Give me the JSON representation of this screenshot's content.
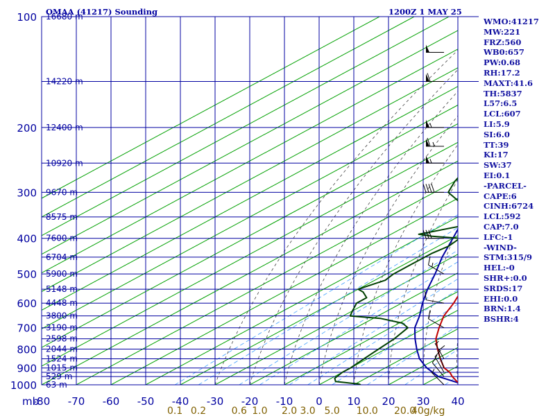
{
  "header": {
    "title": "OMAA (41217) Sounding",
    "time": "1200Z  1 MAY 25"
  },
  "chart_data": {
    "type": "skew-t",
    "pressure_axis_label": "mb",
    "pressure_ticks": [
      100,
      200,
      300,
      400,
      500,
      600,
      700,
      800,
      900,
      1000
    ],
    "pressure_grid": [
      100,
      150,
      200,
      250,
      300,
      350,
      400,
      450,
      500,
      550,
      600,
      650,
      700,
      750,
      800,
      850,
      900,
      925,
      950,
      1000
    ],
    "temperature_ticks": [
      -80,
      -70,
      -60,
      -50,
      -40,
      -30,
      -20,
      -10,
      0,
      10,
      20,
      30,
      40
    ],
    "temperature_tick_labels": [
      "-80",
      "-70",
      "-60",
      "-50",
      "-40",
      "-30",
      "-20",
      "-10",
      "0",
      "10",
      "20",
      "30",
      "40"
    ],
    "mixing_ratio_labels": [
      "0.1",
      "0.2",
      "0.6",
      "1.0",
      "2.0",
      "3.0",
      "5.0",
      "10.0",
      "20.0",
      "40g/kg"
    ],
    "height_labels": [
      {
        "p": 100,
        "label": "16680 m"
      },
      {
        "p": 150,
        "label": "14220 m"
      },
      {
        "p": 200,
        "label": "12400 m"
      },
      {
        "p": 250,
        "label": "10920 m"
      },
      {
        "p": 300,
        "label": "9670 m"
      },
      {
        "p": 350,
        "label": "8575 m"
      },
      {
        "p": 400,
        "label": "7600 m"
      },
      {
        "p": 450,
        "label": "6704 m"
      },
      {
        "p": 500,
        "label": "5900 m"
      },
      {
        "p": 550,
        "label": "5148 m"
      },
      {
        "p": 600,
        "label": "4448 m"
      },
      {
        "p": 650,
        "label": "3800 m"
      },
      {
        "p": 700,
        "label": "3190 m"
      },
      {
        "p": 750,
        "label": "2598 m"
      },
      {
        "p": 800,
        "label": "2044 m"
      },
      {
        "p": 850,
        "label": "1524 m"
      },
      {
        "p": 900,
        "label": "1015 m"
      },
      {
        "p": 950,
        "label": "529 m"
      },
      {
        "p": 1000,
        "label": "63 m"
      }
    ],
    "temperature_profile": [
      [
        1000,
        42
      ],
      [
        980,
        38
      ],
      [
        950,
        34
      ],
      [
        925,
        31
      ],
      [
        900,
        27
      ],
      [
        850,
        21
      ],
      [
        800,
        15
      ],
      [
        750,
        9
      ],
      [
        700,
        4
      ],
      [
        650,
        -1
      ],
      [
        600,
        -5
      ],
      [
        550,
        -10
      ],
      [
        500,
        -15
      ],
      [
        450,
        -21
      ],
      [
        400,
        -28
      ],
      [
        350,
        -36
      ],
      [
        300,
        -45
      ],
      [
        275,
        -49
      ],
      [
        250,
        -53
      ],
      [
        240,
        -55
      ],
      [
        235,
        -54
      ],
      [
        200,
        -59
      ],
      [
        150,
        -66
      ],
      [
        125,
        -70
      ],
      [
        100,
        -76
      ]
    ],
    "dewpoint_profile": [
      [
        1000,
        12
      ],
      [
        995,
        11
      ],
      [
        980,
        3
      ],
      [
        960,
        1
      ],
      [
        925,
        0
      ],
      [
        900,
        0
      ],
      [
        850,
        -1
      ],
      [
        800,
        -2
      ],
      [
        750,
        -3
      ],
      [
        700,
        -5
      ],
      [
        680,
        -9
      ],
      [
        660,
        -18
      ],
      [
        650,
        -28
      ],
      [
        630,
        -30
      ],
      [
        600,
        -33
      ],
      [
        580,
        -33
      ],
      [
        560,
        -37
      ],
      [
        550,
        -40
      ],
      [
        520,
        -37
      ],
      [
        500,
        -38
      ],
      [
        470,
        -38
      ],
      [
        440,
        -38
      ],
      [
        420,
        -37
      ],
      [
        400,
        -38
      ],
      [
        395,
        -47
      ],
      [
        390,
        -52
      ],
      [
        370,
        -44
      ],
      [
        355,
        -40
      ],
      [
        345,
        -47
      ],
      [
        335,
        -42
      ],
      [
        330,
        -47
      ],
      [
        320,
        -57
      ],
      [
        300,
        -66
      ],
      [
        280,
        -70
      ],
      [
        250,
        -75
      ],
      [
        240,
        -78
      ],
      [
        230,
        -79
      ],
      [
        220,
        -82
      ],
      [
        205,
        -85
      ],
      [
        180,
        -89
      ],
      [
        150,
        -96
      ]
    ],
    "parcel_profile": [
      [
        1000,
        42
      ],
      [
        950,
        30
      ],
      [
        900,
        22
      ],
      [
        850,
        15
      ],
      [
        800,
        9
      ],
      [
        750,
        3
      ],
      [
        700,
        -3
      ],
      [
        650,
        -8
      ],
      [
        600,
        -14
      ],
      [
        550,
        -20
      ],
      [
        500,
        -26
      ],
      [
        450,
        -33
      ],
      [
        400,
        -40
      ],
      [
        350,
        -48
      ],
      [
        300,
        -57
      ],
      [
        250,
        -67
      ],
      [
        200,
        -77
      ],
      [
        150,
        -88
      ]
    ],
    "wind_barbs": [
      {
        "p": 1000,
        "dir": 315,
        "spd": 5
      },
      {
        "p": 950,
        "dir": 320,
        "spd": 10
      },
      {
        "p": 925,
        "dir": 330,
        "spd": 10
      },
      {
        "p": 900,
        "dir": 340,
        "spd": 10
      },
      {
        "p": 850,
        "dir": 330,
        "spd": 5
      },
      {
        "p": 700,
        "dir": 300,
        "spd": 10
      },
      {
        "p": 600,
        "dir": 280,
        "spd": 10
      },
      {
        "p": 500,
        "dir": 300,
        "spd": 15
      },
      {
        "p": 400,
        "dir": 270,
        "spd": 30
      },
      {
        "p": 300,
        "dir": 270,
        "spd": 40
      },
      {
        "p": 250,
        "dir": 270,
        "spd": 55
      },
      {
        "p": 225,
        "dir": 270,
        "spd": 65
      },
      {
        "p": 200,
        "dir": 270,
        "spd": 55
      },
      {
        "p": 150,
        "dir": 270,
        "spd": 60
      },
      {
        "p": 125,
        "dir": 270,
        "spd": 50
      }
    ],
    "colors": {
      "temperature": "#c00000",
      "dewpoint": "#004000",
      "parcel": "#0000a0",
      "isobar": "#0000a0",
      "isotherm": "#00a000",
      "dry_adiabat": "#404040",
      "mixing_ratio": "#40a0ff",
      "label": "#0000a0"
    }
  },
  "indices": [
    "WMO:41217",
    "MW:221",
    "FRZ:560",
    "WB0:657",
    "PW:0.68",
    "RH:17.2",
    "MAXT:41.6",
    "TH:5837",
    "L57:6.5",
    "LCL:607",
    "LI:5.9",
    "SI:6.0",
    "TT:39",
    "KI:17",
    "SW:37",
    "EI:0.1",
    "-PARCEL-",
    "CAPE:6",
    "CINH:6724",
    "LCL:592",
    "CAP:7.0",
    "LFC:-1",
    "-WIND-",
    "STM:315/9",
    "HEL:-0",
    "SHR+:0.0",
    "SRDS:17",
    "EHI:0.0",
    "BRN:1.4",
    "BSHR:4"
  ]
}
